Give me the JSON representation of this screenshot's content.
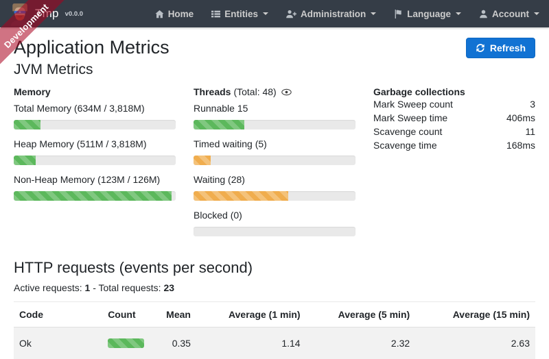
{
  "navbar": {
    "brand": {
      "name": "Tmp",
      "version": "v0.0.0"
    },
    "items": [
      {
        "label": "Home",
        "icon": "home-icon",
        "caret": false
      },
      {
        "label": "Entities",
        "icon": "list-icon",
        "caret": true
      },
      {
        "label": "Administration",
        "icon": "user-plus-icon",
        "caret": true
      },
      {
        "label": "Language",
        "icon": "flag-icon",
        "caret": true
      },
      {
        "label": "Account",
        "icon": "user-icon",
        "caret": true
      }
    ]
  },
  "ribbon": {
    "label": "Development"
  },
  "page": {
    "title": "Application Metrics",
    "jvm_heading": "JVM Metrics",
    "refresh_label": "Refresh"
  },
  "memory": {
    "heading": "Memory",
    "items": [
      {
        "label": "Total Memory (634M / 3,818M)",
        "percent": 16.6,
        "color": "#5cb85c"
      },
      {
        "label": "Heap Memory (511M / 3,818M)",
        "percent": 13.4,
        "color": "#5cb85c"
      },
      {
        "label": "Non-Heap Memory (123M / 126M)",
        "percent": 97.6,
        "color": "#5cb85c"
      }
    ]
  },
  "threads": {
    "heading": "Threads",
    "total_label": "(Total: 48)",
    "items": [
      {
        "label": "Runnable 15",
        "percent": 31.3,
        "color": "#5cb85c"
      },
      {
        "label": "Timed waiting (5)",
        "percent": 10.4,
        "color": "#f0ad4e"
      },
      {
        "label": "Waiting (28)",
        "percent": 58.3,
        "color": "#f0ad4e"
      },
      {
        "label": "Blocked (0)",
        "percent": 0,
        "color": "#f0ad4e"
      }
    ]
  },
  "garbage": {
    "heading": "Garbage collections",
    "rows": [
      {
        "label": "Mark Sweep count",
        "value": "3"
      },
      {
        "label": "Mark Sweep time",
        "value": "406ms"
      },
      {
        "label": "Scavenge count",
        "value": "11"
      },
      {
        "label": "Scavenge time",
        "value": "168ms"
      }
    ]
  },
  "http": {
    "heading": "HTTP requests (events per second)",
    "active_label": "Active requests:",
    "active_value": "1",
    "between": "- Total requests:",
    "total_value": "23",
    "table": {
      "headers": [
        "Code",
        "Count",
        "Mean",
        "Average (1 min)",
        "Average (5 min)",
        "Average (15 min)"
      ],
      "rows": [
        {
          "code": "Ok",
          "count_percent": 100,
          "mean": "0.35",
          "avg1": "1.14",
          "avg5": "2.32",
          "avg15": "2.63"
        }
      ]
    }
  },
  "colors": {
    "navbar_bg": "#353d47",
    "primary": "#1172d3",
    "success": "#5cb85c",
    "warning": "#f0ad4e",
    "ribbon": "rgba(170,0,30,0.55)",
    "track": "#e9e9e9",
    "row_stripe": "#f2f2f2"
  }
}
